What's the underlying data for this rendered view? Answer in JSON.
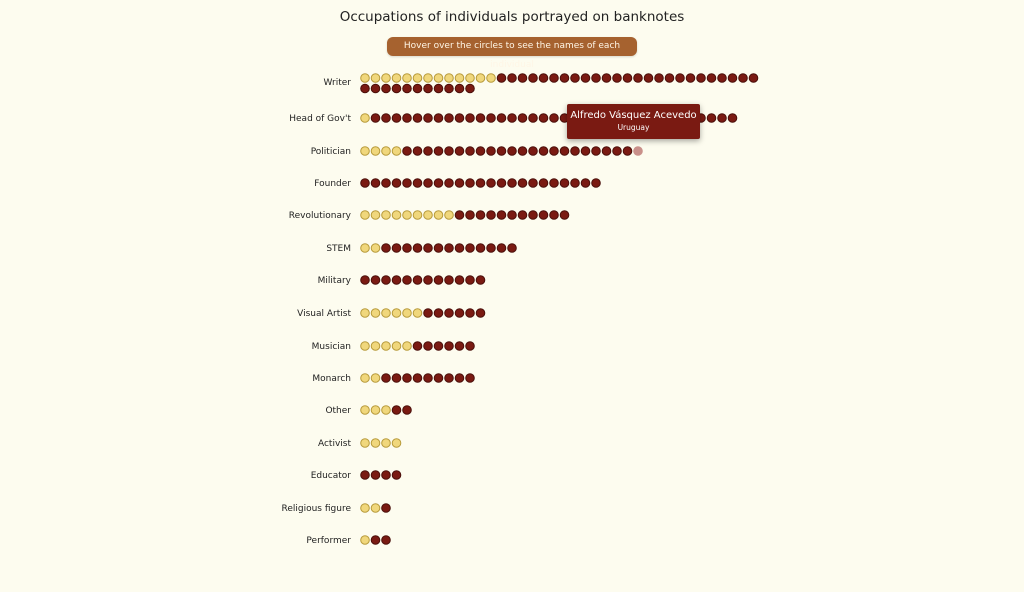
{
  "title": "Occupations of individuals portrayed on banknotes",
  "hint": "Hover over the circles to see the names of each individual",
  "tooltip": {
    "name": "Alfredo Vásquez Acevedo",
    "country": "Uruguay"
  },
  "colors": {
    "background": "#fdfcef",
    "group_a_fill": "#f0d77c",
    "group_a_stroke": "#b79a3a",
    "group_b_fill": "#7a1a12",
    "group_b_stroke": "#4a0f0a",
    "highlight_fill": "#c9908a",
    "tooltip_bg": "#7a1a12",
    "hint_bg": "#a6622f"
  },
  "chart_data": {
    "type": "dot",
    "title": "Occupations of individuals portrayed on banknotes",
    "categories": [
      "Writer",
      "Head of Gov't",
      "Politician",
      "Founder",
      "Revolutionary",
      "STEM",
      "Military",
      "Visual Artist",
      "Musician",
      "Monarch",
      "Other",
      "Activist",
      "Educator",
      "Religious figure",
      "Performer"
    ],
    "series": [
      {
        "values": [
          13,
          1,
          4,
          0,
          9,
          2,
          0,
          6,
          5,
          2,
          3,
          4,
          0,
          2,
          1
        ]
      },
      {
        "values": [
          36,
          35,
          23,
          23,
          11,
          13,
          12,
          6,
          6,
          9,
          2,
          0,
          4,
          1,
          2
        ]
      }
    ],
    "highlight": {
      "category": "Politician",
      "series_index": 1,
      "position": "last"
    }
  }
}
